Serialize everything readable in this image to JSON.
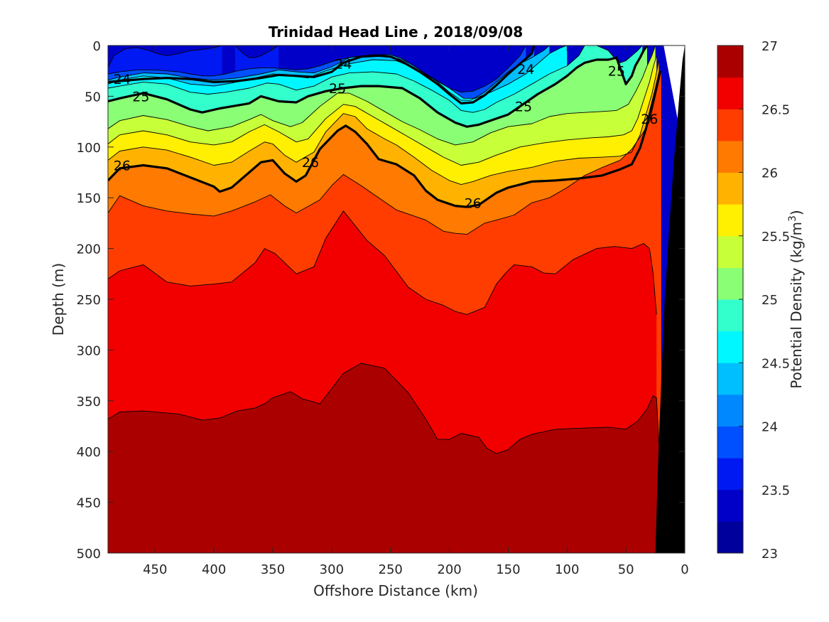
{
  "chart_data": {
    "type": "contour",
    "title": "Trinidad Head Line , 2018/09/08",
    "xlabel": "Offshore Distance (km)",
    "ylabel": "Depth (m)",
    "xlim": [
      490,
      0
    ],
    "ylim": [
      0,
      500
    ],
    "x_ticks": [
      "450",
      "400",
      "350",
      "300",
      "250",
      "200",
      "150",
      "100",
      "50",
      "0"
    ],
    "y_ticks": [
      "0",
      "50",
      "100",
      "150",
      "200",
      "250",
      "300",
      "350",
      "400",
      "450",
      "500"
    ],
    "colorbar": {
      "label": "Potential Density (kg/m",
      "label_sup": "3",
      "label_end": ")",
      "range": [
        23,
        27
      ],
      "ticks": [
        "23",
        "23.5",
        "24",
        "24.5",
        "25",
        "25.5",
        "26",
        "26.5",
        "27"
      ],
      "level_colors": [
        "#00009c",
        "#0000c9",
        "#0019f2",
        "#0050ff",
        "#0088ff",
        "#00bfff",
        "#00f7ff",
        "#33ffcc",
        "#8aff75",
        "#c7ff38",
        "#ffef00",
        "#ffb300",
        "#ff7a00",
        "#ff3d00",
        "#f20000",
        "#ab0000"
      ]
    },
    "contour_labels": [
      {
        "text": "24",
        "x": 478,
        "d": 33
      },
      {
        "text": "24",
        "x": 290,
        "d": 18
      },
      {
        "text": "24",
        "x": 135,
        "d": 23
      },
      {
        "text": "25",
        "x": 462,
        "d": 50
      },
      {
        "text": "25",
        "x": 295,
        "d": 42
      },
      {
        "text": "25",
        "x": 137,
        "d": 60
      },
      {
        "text": "25",
        "x": 58,
        "d": 25
      },
      {
        "text": "26",
        "x": 478,
        "d": 118
      },
      {
        "text": "26",
        "x": 318,
        "d": 115
      },
      {
        "text": "26",
        "x": 180,
        "d": 155
      },
      {
        "text": "26",
        "x": 30,
        "d": 72
      }
    ],
    "isopycnals": [
      {
        "level": 26.75,
        "x": [
          490,
          480,
          460,
          430,
          410,
          395,
          380,
          365,
          357,
          350,
          335,
          325,
          310,
          290,
          275,
          255,
          235,
          220,
          210,
          200,
          190,
          175,
          168,
          160,
          150,
          140,
          130,
          110,
          90,
          65,
          50,
          40,
          32,
          27,
          24,
          22
        ],
        "d": [
          368,
          361,
          360,
          363,
          369,
          367,
          360,
          357,
          353,
          347,
          341,
          348,
          353,
          323,
          313,
          318,
          342,
          368,
          388,
          388,
          382,
          386,
          397,
          402,
          398,
          388,
          383,
          378,
          377,
          376,
          378,
          370,
          358,
          345,
          347,
          392
        ]
      },
      {
        "level": 26.5,
        "x": [
          490,
          480,
          460,
          440,
          420,
          400,
          385,
          365,
          357,
          348,
          330,
          315,
          305,
          290,
          270,
          255,
          235,
          220,
          205,
          195,
          185,
          170,
          160,
          152,
          145,
          130,
          120,
          110,
          95,
          75,
          60,
          45,
          35,
          30,
          27,
          24
        ],
        "d": [
          230,
          222,
          216,
          233,
          237,
          235,
          233,
          214,
          200,
          205,
          225,
          218,
          190,
          163,
          192,
          207,
          238,
          250,
          256,
          262,
          265,
          258,
          235,
          224,
          216,
          218,
          224,
          225,
          211,
          200,
          198,
          200,
          195,
          200,
          224,
          265
        ]
      },
      {
        "level": 26.25,
        "x": [
          490,
          480,
          460,
          440,
          420,
          400,
          385,
          365,
          352,
          340,
          330,
          310,
          300,
          290,
          275,
          260,
          245,
          220,
          205,
          195,
          185,
          170,
          160,
          145,
          130,
          115,
          100,
          85,
          70,
          55,
          45,
          35,
          30,
          27,
          24,
          20
        ],
        "d": [
          165,
          148,
          158,
          163,
          166,
          168,
          163,
          154,
          147,
          158,
          165,
          152,
          138,
          127,
          138,
          150,
          162,
          172,
          183,
          185,
          186,
          175,
          172,
          167,
          155,
          150,
          140,
          128,
          120,
          113,
          102,
          85,
          75,
          60,
          45,
          25
        ]
      },
      {
        "level": 26,
        "x": [
          490,
          480,
          460,
          440,
          420,
          400,
          395,
          385,
          375,
          360,
          350,
          340,
          330,
          322,
          310,
          295,
          288,
          280,
          270,
          260,
          245,
          230,
          220,
          210,
          195,
          185,
          175,
          160,
          150,
          130,
          110,
          90,
          70,
          55,
          45,
          38,
          33,
          28,
          25,
          21
        ],
        "d": [
          133,
          121,
          118,
          121,
          130,
          139,
          144,
          140,
          130,
          115,
          113,
          126,
          134,
          128,
          102,
          84,
          79,
          85,
          97,
          112,
          117,
          128,
          143,
          152,
          158,
          159,
          157,
          145,
          140,
          134,
          133,
          131,
          128,
          122,
          117,
          101,
          82,
          59,
          45,
          25
        ]
      },
      {
        "level": 25.75,
        "x": [
          490,
          480,
          460,
          440,
          420,
          400,
          385,
          370,
          357,
          350,
          340,
          330,
          315,
          305,
          290,
          280,
          270,
          255,
          245,
          230,
          215,
          200,
          190,
          180,
          165,
          150,
          130,
          110,
          90,
          70,
          55,
          45,
          38,
          33,
          28,
          25,
          22
        ],
        "d": [
          113,
          104,
          100,
          103,
          110,
          118,
          115,
          104,
          95,
          97,
          108,
          115,
          105,
          85,
          67,
          70,
          82,
          92,
          98,
          110,
          123,
          133,
          137,
          134,
          128,
          124,
          120,
          114,
          111,
          110,
          109,
          105,
          88,
          68,
          48,
          32,
          15
        ]
      },
      {
        "level": 25.5,
        "x": [
          490,
          480,
          460,
          440,
          420,
          400,
          385,
          370,
          357,
          345,
          330,
          320,
          305,
          290,
          280,
          265,
          250,
          235,
          220,
          205,
          190,
          175,
          160,
          140,
          120,
          100,
          80,
          65,
          52,
          45,
          40,
          35,
          30,
          27,
          24
        ],
        "d": [
          97,
          88,
          84,
          88,
          95,
          98,
          95,
          85,
          78,
          85,
          95,
          92,
          72,
          58,
          60,
          70,
          80,
          90,
          100,
          110,
          118,
          115,
          108,
          100,
          96,
          93,
          91,
          90,
          88,
          84,
          72,
          54,
          36,
          22,
          10
        ]
      },
      {
        "level": 25.25,
        "x": [
          490,
          480,
          460,
          440,
          420,
          405,
          385,
          370,
          360,
          350,
          335,
          325,
          310,
          295,
          285,
          270,
          255,
          240,
          225,
          210,
          195,
          180,
          165,
          150,
          130,
          115,
          100,
          85,
          70,
          58,
          48,
          42,
          36,
          32,
          28,
          25
        ],
        "d": [
          82,
          74,
          69,
          73,
          80,
          84,
          80,
          73,
          68,
          74,
          80,
          76,
          60,
          47,
          47,
          55,
          65,
          75,
          83,
          92,
          98,
          95,
          86,
          80,
          77,
          70,
          67,
          66,
          65,
          64,
          58,
          46,
          32,
          20,
          10,
          0
        ]
      },
      {
        "level": 25,
        "x": [
          490,
          480,
          460,
          440,
          420,
          410,
          395,
          385,
          370,
          360,
          345,
          330,
          320,
          305,
          290,
          275,
          260,
          240,
          225,
          210,
          195,
          185,
          175,
          160,
          150,
          140,
          125,
          110,
          100,
          92,
          85,
          75,
          65,
          58,
          55,
          50,
          45,
          42,
          38,
          35,
          32
        ],
        "d": [
          55,
          52,
          47,
          53,
          63,
          66,
          62,
          60,
          57,
          50,
          55,
          56,
          50,
          45,
          42,
          40,
          40,
          42,
          52,
          66,
          76,
          80,
          78,
          72,
          68,
          60,
          48,
          38,
          30,
          22,
          17,
          14,
          14,
          12,
          22,
          38,
          30,
          20,
          12,
          5,
          0
        ]
      },
      {
        "level": 24.75,
        "x": [
          490,
          480,
          460,
          440,
          420,
          405,
          390,
          370,
          355,
          345,
          330,
          315,
          300,
          285,
          265,
          245,
          230,
          215,
          200,
          190,
          180,
          170,
          160,
          145,
          130,
          115,
          100,
          90,
          85,
          75,
          65,
          60,
          55,
          50,
          45,
          40,
          36
        ],
        "d": [
          42,
          40,
          36,
          38,
          46,
          48,
          46,
          42,
          37,
          38,
          44,
          40,
          31,
          27,
          26,
          28,
          35,
          44,
          54,
          64,
          66,
          63,
          56,
          48,
          38,
          28,
          20,
          10,
          0,
          0,
          5,
          12,
          17,
          15,
          10,
          5,
          0
        ]
      },
      {
        "level": 24.5,
        "x": [
          490,
          480,
          460,
          440,
          420,
          400,
          385,
          365,
          350,
          335,
          320,
          305,
          285,
          265,
          245,
          230,
          215,
          200,
          188,
          178,
          165,
          150,
          135,
          125,
          115,
          105,
          100
        ],
        "d": [
          38,
          34,
          30,
          32,
          38,
          40,
          37,
          32,
          28,
          30,
          32,
          25,
          18,
          14,
          15,
          22,
          32,
          42,
          52,
          52,
          46,
          38,
          28,
          18,
          8,
          2,
          0
        ]
      },
      {
        "level": 24.25,
        "x": [
          490,
          480,
          460,
          440,
          420,
          400,
          380,
          360,
          345,
          330,
          315,
          300,
          285,
          265,
          250,
          240,
          225,
          210,
          200,
          190,
          182,
          170,
          160,
          150,
          140,
          130,
          120,
          115
        ],
        "d": [
          34,
          31,
          27,
          28,
          32,
          34,
          32,
          28,
          24,
          26,
          27,
          21,
          12,
          9,
          9,
          13,
          24,
          36,
          46,
          54,
          54,
          46,
          36,
          26,
          18,
          12,
          5,
          0
        ]
      },
      {
        "level": 24,
        "x": [
          490,
          480,
          460,
          440,
          420,
          400,
          380,
          360,
          345,
          330,
          315,
          300,
          290,
          275,
          260,
          250,
          240,
          225,
          210,
          200,
          190,
          180,
          170,
          160,
          150,
          140,
          130,
          128
        ],
        "d": [
          36,
          35,
          33,
          32,
          33,
          36,
          35,
          32,
          29,
          30,
          31,
          26,
          17,
          11,
          10,
          11,
          16,
          26,
          38,
          48,
          57,
          56,
          49,
          39,
          28,
          18,
          8,
          0
        ]
      },
      {
        "level": 23.75,
        "x": [
          490,
          480,
          465,
          450,
          440,
          430,
          420,
          410,
          400,
          390,
          380,
          370,
          360,
          350,
          340,
          330,
          320,
          310,
          300,
          290,
          280,
          270,
          260,
          250,
          240,
          230,
          220,
          210,
          200,
          190,
          180,
          170,
          160,
          150,
          140,
          135
        ],
        "d": [
          28,
          26,
          24,
          24,
          25,
          26,
          28,
          30,
          30,
          28,
          25,
          23,
          22,
          22,
          23,
          24,
          23,
          20,
          16,
          13,
          11,
          10,
          10,
          11,
          14,
          20,
          28,
          35,
          42,
          46,
          45,
          40,
          33,
          22,
          10,
          0
        ]
      },
      {
        "level": 23.5,
        "x": [
          490,
          485,
          475,
          465,
          455,
          448,
          440,
          430,
          420,
          410,
          400,
          393
        ],
        "d": [
          22,
          10,
          3,
          2,
          5,
          8,
          10,
          8,
          5,
          4,
          2,
          0
        ]
      },
      {
        "level": 23.5,
        "x": [
          382,
          375,
          370,
          365,
          360,
          352,
          345
        ],
        "d": [
          0,
          8,
          12,
          12,
          10,
          5,
          0
        ]
      }
    ],
    "isopycnal_upper_colors": {
      "26.75": "#ab0000",
      "26.5": "#f20000",
      "26.25": "#ff3d00",
      "26": "#ff7a00",
      "25.75": "#ffb300",
      "25.5": "#ffef00",
      "25.25": "#c7ff38",
      "25": "#8aff75",
      "24.75": "#33ffcc",
      "24.5": "#00f7ff",
      "24.25": "#00bfff",
      "24": "#0088ff",
      "23.75": "#0050ff",
      "23.5": "#0019f2"
    },
    "top_fill": "#0000c9",
    "bathymetry": {
      "x": [
        25,
        0,
        0,
        25
      ],
      "d": [
        500,
        500,
        0,
        500
      ],
      "color": "#000000"
    },
    "bathymetry_edge": {
      "x": [
        25,
        23,
        20,
        17,
        13,
        9,
        5,
        2,
        0
      ],
      "d": [
        500,
        420,
        330,
        250,
        175,
        110,
        55,
        15,
        0
      ]
    },
    "void_region": {
      "x": [
        18,
        0,
        0,
        18
      ],
      "d": [
        0,
        0,
        110,
        0
      ],
      "color": "#ffffff"
    },
    "bold_levels": [
      24,
      25,
      26
    ]
  }
}
